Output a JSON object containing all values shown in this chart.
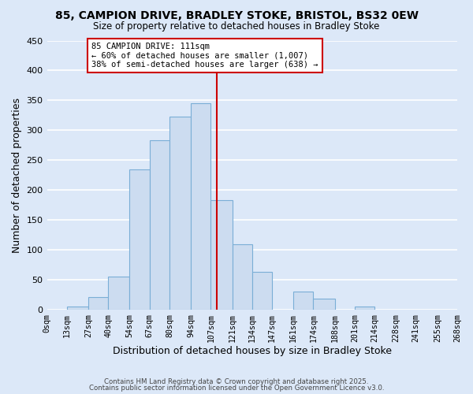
{
  "title": "85, CAMPION DRIVE, BRADLEY STOKE, BRISTOL, BS32 0EW",
  "subtitle": "Size of property relative to detached houses in Bradley Stoke",
  "xlabel": "Distribution of detached houses by size in Bradley Stoke",
  "ylabel": "Number of detached properties",
  "bar_color": "#ccdcf0",
  "bar_edge_color": "#7aaed6",
  "background_color": "#dce8f8",
  "grid_color": "#ffffff",
  "vline_x": 111,
  "vline_color": "#cc0000",
  "annotation_text": "85 CAMPION DRIVE: 111sqm\n← 60% of detached houses are smaller (1,007)\n38% of semi-detached houses are larger (638) →",
  "bin_edges": [
    0,
    13,
    27,
    40,
    54,
    67,
    80,
    94,
    107,
    121,
    134,
    147,
    161,
    174,
    188,
    201,
    214,
    228,
    241,
    255,
    268
  ],
  "bin_labels": [
    "0sqm",
    "13sqm",
    "27sqm",
    "40sqm",
    "54sqm",
    "67sqm",
    "80sqm",
    "94sqm",
    "107sqm",
    "121sqm",
    "134sqm",
    "147sqm",
    "161sqm",
    "174sqm",
    "188sqm",
    "201sqm",
    "214sqm",
    "228sqm",
    "241sqm",
    "255sqm",
    "268sqm"
  ],
  "counts": [
    0,
    6,
    21,
    56,
    234,
    284,
    323,
    345,
    183,
    110,
    63,
    0,
    31,
    18,
    0,
    6,
    0,
    0,
    0,
    0
  ],
  "ylim": [
    0,
    450
  ],
  "yticks": [
    0,
    50,
    100,
    150,
    200,
    250,
    300,
    350,
    400,
    450
  ],
  "footer1": "Contains HM Land Registry data © Crown copyright and database right 2025.",
  "footer2": "Contains public sector information licensed under the Open Government Licence v3.0."
}
